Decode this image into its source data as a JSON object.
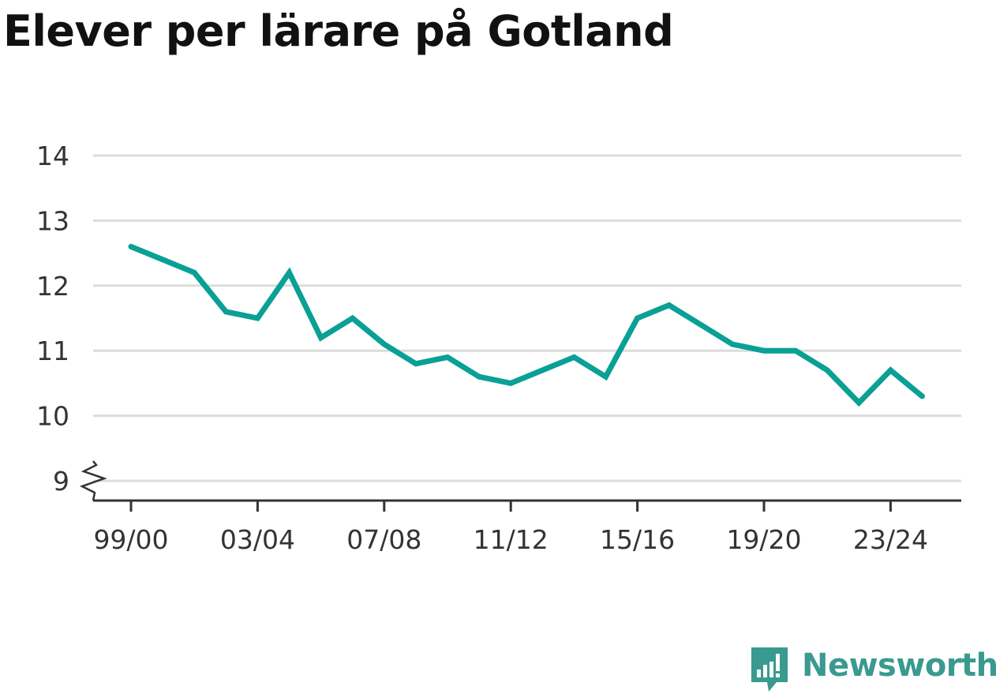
{
  "title": "Elever per lärare på Gotland",
  "brand": {
    "name": "Newsworthy",
    "color": "#3a9a90",
    "icon": "newsworthy-logo-icon"
  },
  "colors": {
    "line": "#0aa096",
    "grid": "#dcdcdc",
    "axis": "#333333"
  },
  "chart_data": {
    "type": "line",
    "title": "Elever per lärare på Gotland",
    "xlabel": "",
    "ylabel": "",
    "x": [
      "99/00",
      "00/01",
      "01/02",
      "02/03",
      "03/04",
      "04/05",
      "05/06",
      "06/07",
      "07/08",
      "08/09",
      "09/10",
      "10/11",
      "11/12",
      "12/13",
      "13/14",
      "14/15",
      "15/16",
      "16/17",
      "17/18",
      "18/19",
      "19/20",
      "20/21",
      "21/22",
      "22/23",
      "23/24",
      "24/25"
    ],
    "xtick_labels": [
      "99/00",
      "03/04",
      "07/08",
      "11/12",
      "15/16",
      "19/20",
      "23/24"
    ],
    "series": [
      {
        "values": [
          12.6,
          12.4,
          12.2,
          11.6,
          11.5,
          12.2,
          11.2,
          11.5,
          11.1,
          10.8,
          10.9,
          10.6,
          10.5,
          10.7,
          10.9,
          10.6,
          11.5,
          11.7,
          11.4,
          11.1,
          11.0,
          11.0,
          10.7,
          10.2,
          10.7,
          10.3
        ]
      }
    ],
    "yticks": [
      "9",
      "10",
      "11",
      "12",
      "13",
      "14"
    ],
    "ylim": [
      9,
      14
    ],
    "y_axis_break": true,
    "grid": true,
    "legend": "none"
  }
}
